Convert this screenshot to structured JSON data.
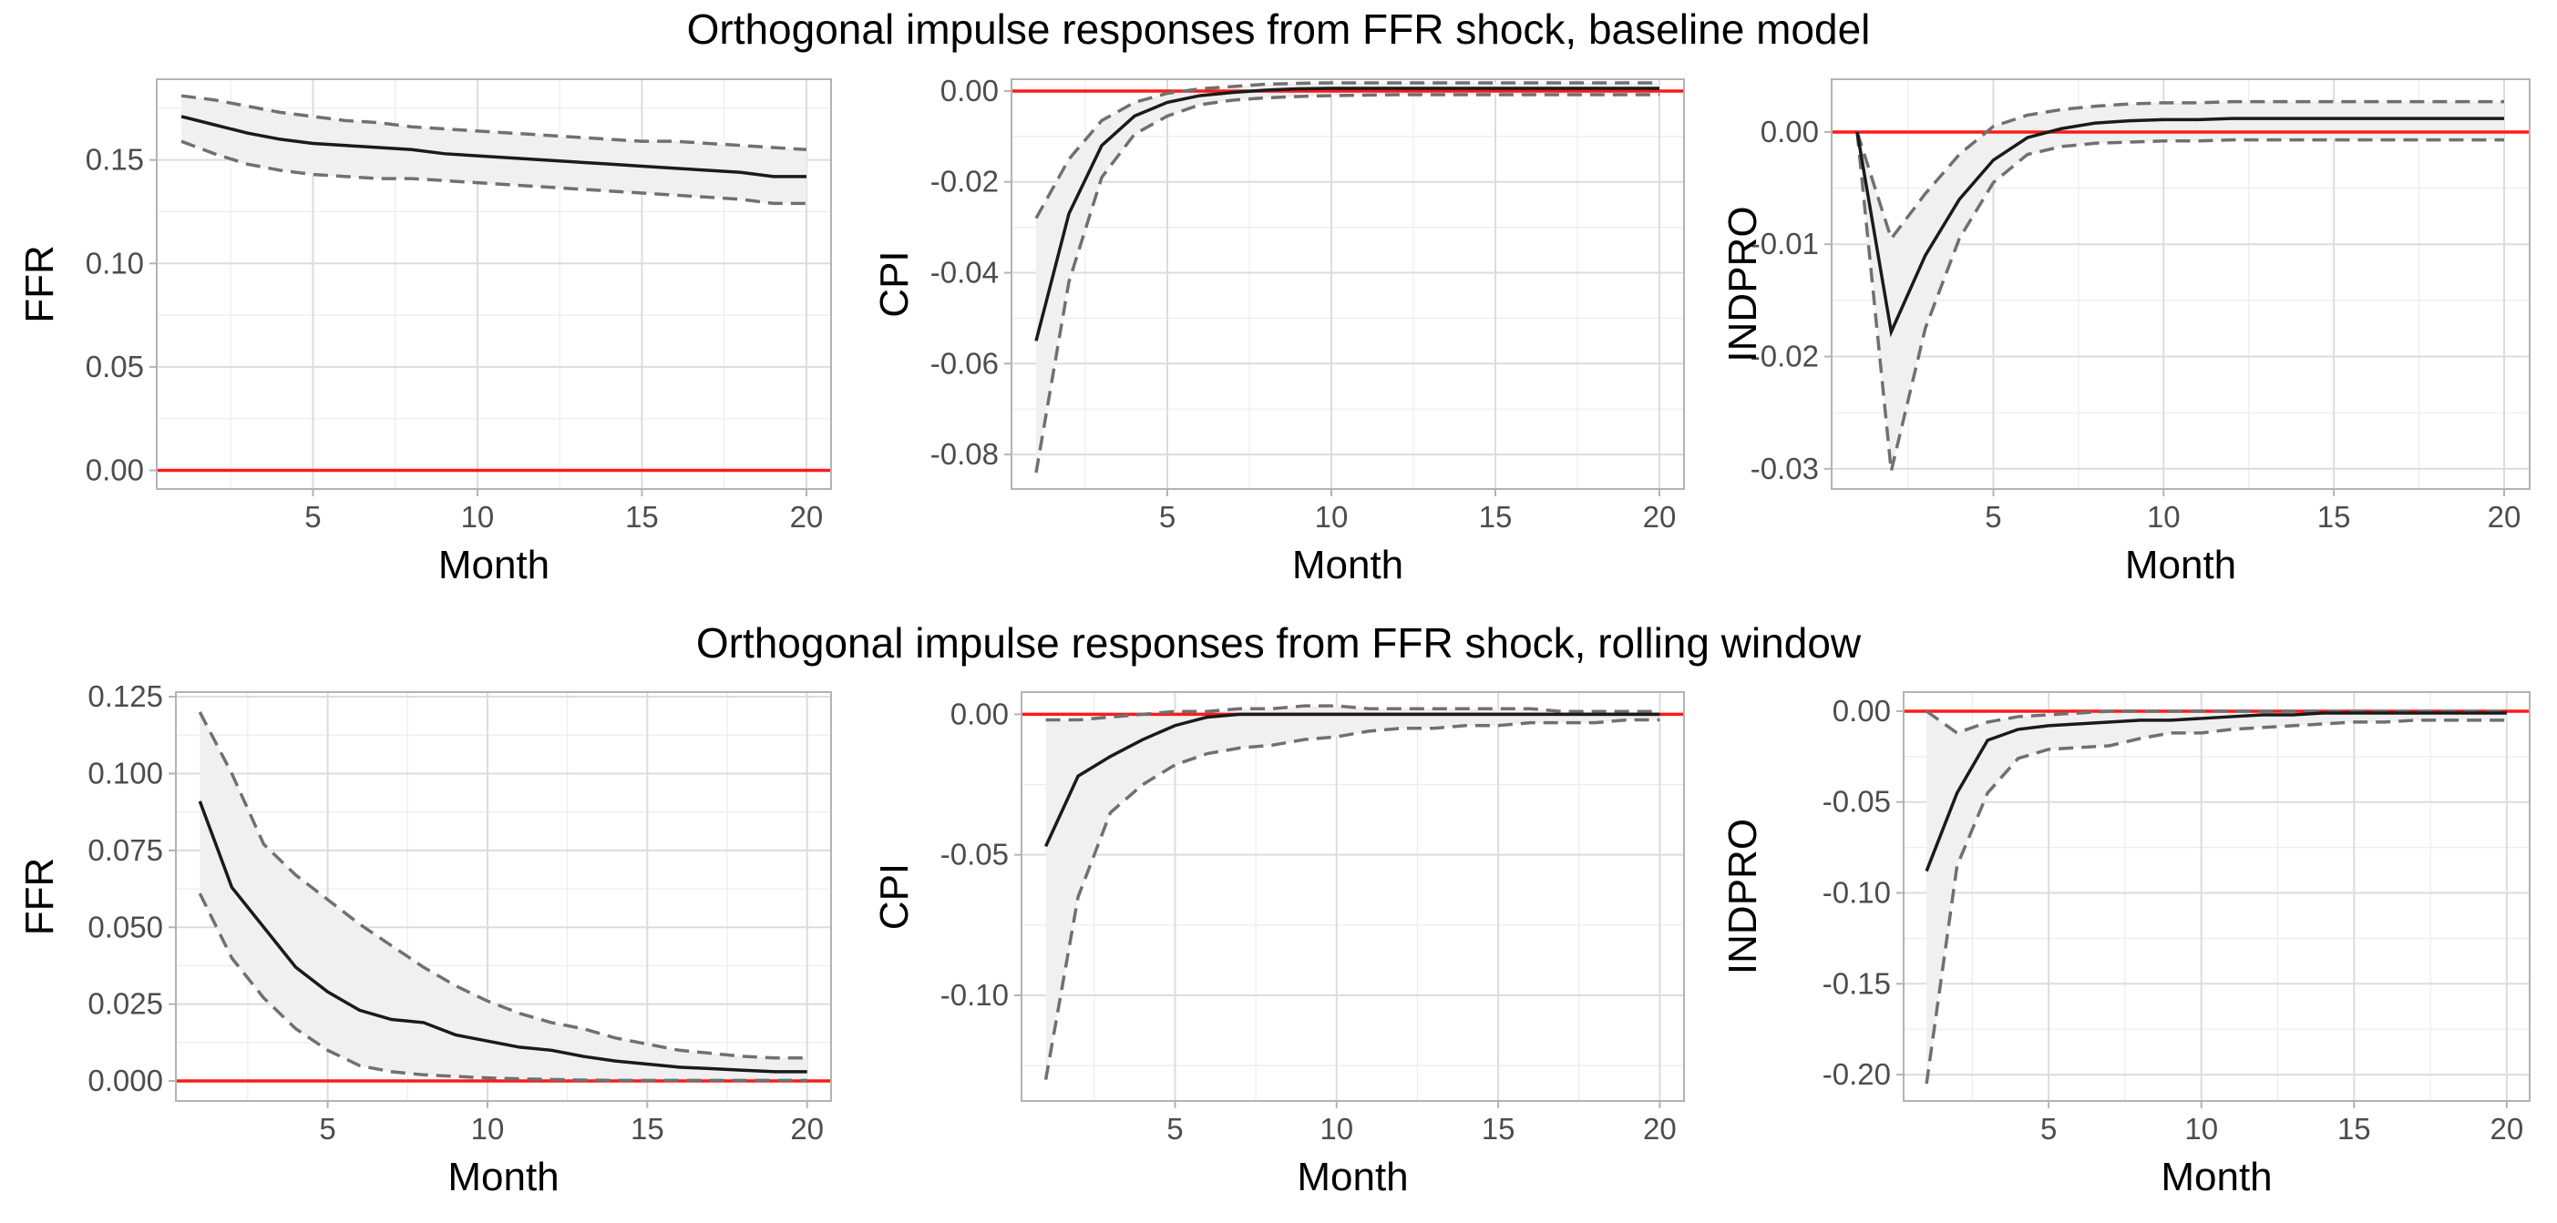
{
  "chart_data": [
    {
      "type": "line",
      "row_title": "Orthogonal impulse responses from FFR shock, baseline model",
      "xlabel": "Month",
      "ylabel": "FFR",
      "xlim": [
        0.25,
        20.75
      ],
      "ylim": [
        -0.009,
        0.189
      ],
      "xticks": [
        5,
        10,
        15,
        20
      ],
      "yticks": [
        0.0,
        0.05,
        0.1,
        0.15
      ],
      "ytick_labels": [
        "0.00",
        "0.05",
        "0.10",
        "0.15"
      ],
      "grid": true,
      "x": [
        1,
        2,
        3,
        4,
        5,
        6,
        7,
        8,
        9,
        10,
        11,
        12,
        13,
        14,
        15,
        16,
        17,
        18,
        19,
        20
      ],
      "series": [
        {
          "role": "response",
          "values": [
            0.171,
            0.167,
            0.163,
            0.16,
            0.158,
            0.157,
            0.156,
            0.155,
            0.153,
            0.152,
            0.151,
            0.15,
            0.149,
            0.148,
            0.147,
            0.146,
            0.145,
            0.144,
            0.142,
            0.142
          ]
        },
        {
          "role": "upper",
          "values": [
            0.181,
            0.179,
            0.176,
            0.173,
            0.171,
            0.169,
            0.168,
            0.166,
            0.165,
            0.164,
            0.163,
            0.162,
            0.161,
            0.16,
            0.159,
            0.159,
            0.158,
            0.157,
            0.156,
            0.155
          ]
        },
        {
          "role": "lower",
          "values": [
            0.159,
            0.153,
            0.148,
            0.145,
            0.143,
            0.142,
            0.141,
            0.141,
            0.14,
            0.139,
            0.138,
            0.137,
            0.136,
            0.135,
            0.134,
            0.133,
            0.132,
            0.131,
            0.129,
            0.129
          ]
        }
      ],
      "reference_line": {
        "y": 0,
        "color": "#ff1a1a"
      }
    },
    {
      "type": "line",
      "xlabel": "Month",
      "ylabel": "CPI",
      "xlim": [
        0.25,
        20.75
      ],
      "ylim": [
        -0.0876,
        0.0026
      ],
      "xticks": [
        5,
        10,
        15,
        20
      ],
      "yticks": [
        0.0,
        -0.02,
        -0.04,
        -0.06,
        -0.08
      ],
      "ytick_labels": [
        "0.00",
        "-0.02",
        "-0.04",
        "-0.06",
        "-0.08"
      ],
      "grid": true,
      "x": [
        1,
        2,
        3,
        4,
        5,
        6,
        7,
        8,
        9,
        10,
        11,
        12,
        13,
        14,
        15,
        16,
        17,
        18,
        19,
        20
      ],
      "series": [
        {
          "role": "response",
          "values": [
            -0.055,
            -0.027,
            -0.012,
            -0.0055,
            -0.0025,
            -0.001,
            -0.0003,
            0.0002,
            0.0005,
            0.0006,
            0.0006,
            0.0006,
            0.0006,
            0.0006,
            0.0006,
            0.0006,
            0.0006,
            0.0006,
            0.0006,
            0.0006
          ]
        },
        {
          "role": "upper",
          "values": [
            -0.028,
            -0.015,
            -0.0065,
            -0.0025,
            -0.0005,
            0.0005,
            0.001,
            0.0015,
            0.0017,
            0.0018,
            0.0018,
            0.0018,
            0.0018,
            0.0018,
            0.0018,
            0.0018,
            0.0018,
            0.0018,
            0.0018,
            0.0018
          ]
        },
        {
          "role": "lower",
          "values": [
            -0.084,
            -0.042,
            -0.019,
            -0.0095,
            -0.0055,
            -0.003,
            -0.002,
            -0.0015,
            -0.0012,
            -0.001,
            -0.0009,
            -0.0008,
            -0.0008,
            -0.0008,
            -0.0008,
            -0.0008,
            -0.0008,
            -0.0008,
            -0.0008,
            -0.0008
          ]
        }
      ],
      "reference_line": {
        "y": 0,
        "color": "#ff1a1a"
      }
    },
    {
      "type": "line",
      "xlabel": "Month",
      "ylabel": "INDPRO",
      "xlim": [
        0.25,
        20.75
      ],
      "ylim": [
        -0.0318,
        0.0047
      ],
      "xticks": [
        5,
        10,
        15,
        20
      ],
      "yticks": [
        0.0,
        -0.01,
        -0.02,
        -0.03
      ],
      "ytick_labels": [
        "0.00",
        "-0.01",
        "-0.02",
        "-0.03"
      ],
      "grid": true,
      "x": [
        1,
        2,
        3,
        4,
        5,
        6,
        7,
        8,
        9,
        10,
        11,
        12,
        13,
        14,
        15,
        16,
        17,
        18,
        19,
        20
      ],
      "series": [
        {
          "role": "response",
          "values": [
            0,
            -0.0178,
            -0.011,
            -0.006,
            -0.0025,
            -0.0005,
            0.0003,
            0.0008,
            0.001,
            0.0011,
            0.0011,
            0.0012,
            0.0012,
            0.0012,
            0.0012,
            0.0012,
            0.0012,
            0.0012,
            0.0012,
            0.0012
          ]
        },
        {
          "role": "upper",
          "values": [
            0,
            -0.0095,
            -0.0055,
            -0.002,
            0.0005,
            0.0015,
            0.002,
            0.0023,
            0.0025,
            0.0026,
            0.0026,
            0.0027,
            0.0027,
            0.0027,
            0.0027,
            0.0027,
            0.0027,
            0.0027,
            0.0027,
            0.0027
          ]
        },
        {
          "role": "lower",
          "values": [
            0,
            -0.0302,
            -0.0175,
            -0.0095,
            -0.0045,
            -0.002,
            -0.0013,
            -0.001,
            -0.0009,
            -0.0008,
            -0.0008,
            -0.0007,
            -0.0007,
            -0.0007,
            -0.0007,
            -0.0007,
            -0.0007,
            -0.0007,
            -0.0007,
            -0.0007
          ]
        }
      ],
      "reference_line": {
        "y": 0,
        "color": "#ff1a1a"
      }
    },
    {
      "type": "line",
      "row_title": "Orthogonal impulse responses from FFR shock, rolling window",
      "xlabel": "Month",
      "ylabel": "FFR",
      "xlim": [
        0.25,
        20.75
      ],
      "ylim": [
        -0.0065,
        0.1265
      ],
      "xticks": [
        5,
        10,
        15,
        20
      ],
      "yticks": [
        0.0,
        0.025,
        0.05,
        0.075,
        0.1,
        0.125
      ],
      "ytick_labels": [
        "0.000",
        "0.025",
        "0.050",
        "0.075",
        "0.100",
        "0.125"
      ],
      "grid": true,
      "x": [
        1,
        2,
        3,
        4,
        5,
        6,
        7,
        8,
        9,
        10,
        11,
        12,
        13,
        14,
        15,
        16,
        17,
        18,
        19,
        20
      ],
      "series": [
        {
          "role": "response",
          "values": [
            0.091,
            0.063,
            0.05,
            0.037,
            0.029,
            0.023,
            0.02,
            0.019,
            0.015,
            0.013,
            0.011,
            0.01,
            0.008,
            0.0065,
            0.0055,
            0.0045,
            0.004,
            0.0035,
            0.003,
            0.003
          ]
        },
        {
          "role": "upper",
          "values": [
            0.12,
            0.1,
            0.077,
            0.067,
            0.059,
            0.051,
            0.044,
            0.037,
            0.031,
            0.026,
            0.022,
            0.019,
            0.017,
            0.014,
            0.012,
            0.01,
            0.009,
            0.008,
            0.0075,
            0.0075
          ]
        },
        {
          "role": "lower",
          "values": [
            0.061,
            0.04,
            0.027,
            0.017,
            0.01,
            0.005,
            0.003,
            0.002,
            0.0015,
            0.001,
            0.0007,
            0.0005,
            0.0003,
            0.0002,
            0.0002,
            0.0002,
            0.0002,
            0.0002,
            0.0002,
            0.0002
          ]
        }
      ],
      "reference_line": {
        "y": 0,
        "color": "#ff1a1a"
      }
    },
    {
      "type": "line",
      "xlabel": "Month",
      "ylabel": "CPI",
      "xlim": [
        0.25,
        20.75
      ],
      "ylim": [
        -0.1376,
        0.0079
      ],
      "xticks": [
        5,
        10,
        15,
        20
      ],
      "yticks": [
        0.0,
        -0.05,
        -0.1
      ],
      "ytick_labels": [
        "0.00",
        "-0.05",
        "-0.10"
      ],
      "grid": true,
      "x": [
        1,
        2,
        3,
        4,
        5,
        6,
        7,
        8,
        9,
        10,
        11,
        12,
        13,
        14,
        15,
        16,
        17,
        18,
        19,
        20
      ],
      "series": [
        {
          "role": "response",
          "values": [
            -0.047,
            -0.022,
            -0.015,
            -0.009,
            -0.004,
            -0.001,
            0,
            0,
            0,
            0,
            0,
            0,
            0,
            0,
            0,
            0,
            0,
            0,
            0,
            0
          ]
        },
        {
          "role": "upper",
          "values": [
            -0.002,
            -0.002,
            -0.001,
            0,
            0.001,
            0.001,
            0.002,
            0.002,
            0.003,
            0.003,
            0.002,
            0.002,
            0.002,
            0.002,
            0.002,
            0.002,
            0.001,
            0.001,
            0.001,
            0.001
          ]
        },
        {
          "role": "lower",
          "values": [
            -0.13,
            -0.065,
            -0.035,
            -0.025,
            -0.018,
            -0.014,
            -0.012,
            -0.011,
            -0.009,
            -0.008,
            -0.006,
            -0.005,
            -0.005,
            -0.004,
            -0.004,
            -0.003,
            -0.003,
            -0.003,
            -0.002,
            -0.002
          ]
        }
      ],
      "reference_line": {
        "y": 0,
        "color": "#ff1a1a"
      }
    },
    {
      "type": "line",
      "xlabel": "Month",
      "ylabel": "INDPRO",
      "xlim": [
        0.25,
        20.75
      ],
      "ylim": [
        -0.2145,
        0.0105
      ],
      "xticks": [
        5,
        10,
        15,
        20
      ],
      "yticks": [
        0.0,
        -0.05,
        -0.1,
        -0.15,
        -0.2
      ],
      "ytick_labels": [
        "0.00",
        "-0.05",
        "-0.10",
        "-0.15",
        "-0.20"
      ],
      "grid": true,
      "x": [
        1,
        2,
        3,
        4,
        5,
        6,
        7,
        8,
        9,
        10,
        11,
        12,
        13,
        14,
        15,
        16,
        17,
        18,
        19,
        20
      ],
      "series": [
        {
          "role": "response",
          "values": [
            -0.088,
            -0.045,
            -0.016,
            -0.01,
            -0.008,
            -0.007,
            -0.006,
            -0.005,
            -0.005,
            -0.004,
            -0.003,
            -0.002,
            -0.002,
            -0.001,
            -0.001,
            -0.001,
            -0.001,
            -0.001,
            -0.001,
            -0.001
          ]
        },
        {
          "role": "upper",
          "values": [
            0,
            -0.012,
            -0.006,
            -0.003,
            -0.002,
            -0.001,
            0,
            0,
            0,
            0,
            0,
            0,
            0,
            0,
            0,
            0,
            0,
            0,
            0,
            0
          ]
        },
        {
          "role": "lower",
          "values": [
            -0.205,
            -0.085,
            -0.045,
            -0.026,
            -0.021,
            -0.02,
            -0.019,
            -0.015,
            -0.012,
            -0.012,
            -0.01,
            -0.009,
            -0.008,
            -0.007,
            -0.006,
            -0.006,
            -0.005,
            -0.005,
            -0.005,
            -0.005
          ]
        }
      ],
      "reference_line": {
        "y": 0,
        "color": "#ff1a1a"
      }
    }
  ]
}
